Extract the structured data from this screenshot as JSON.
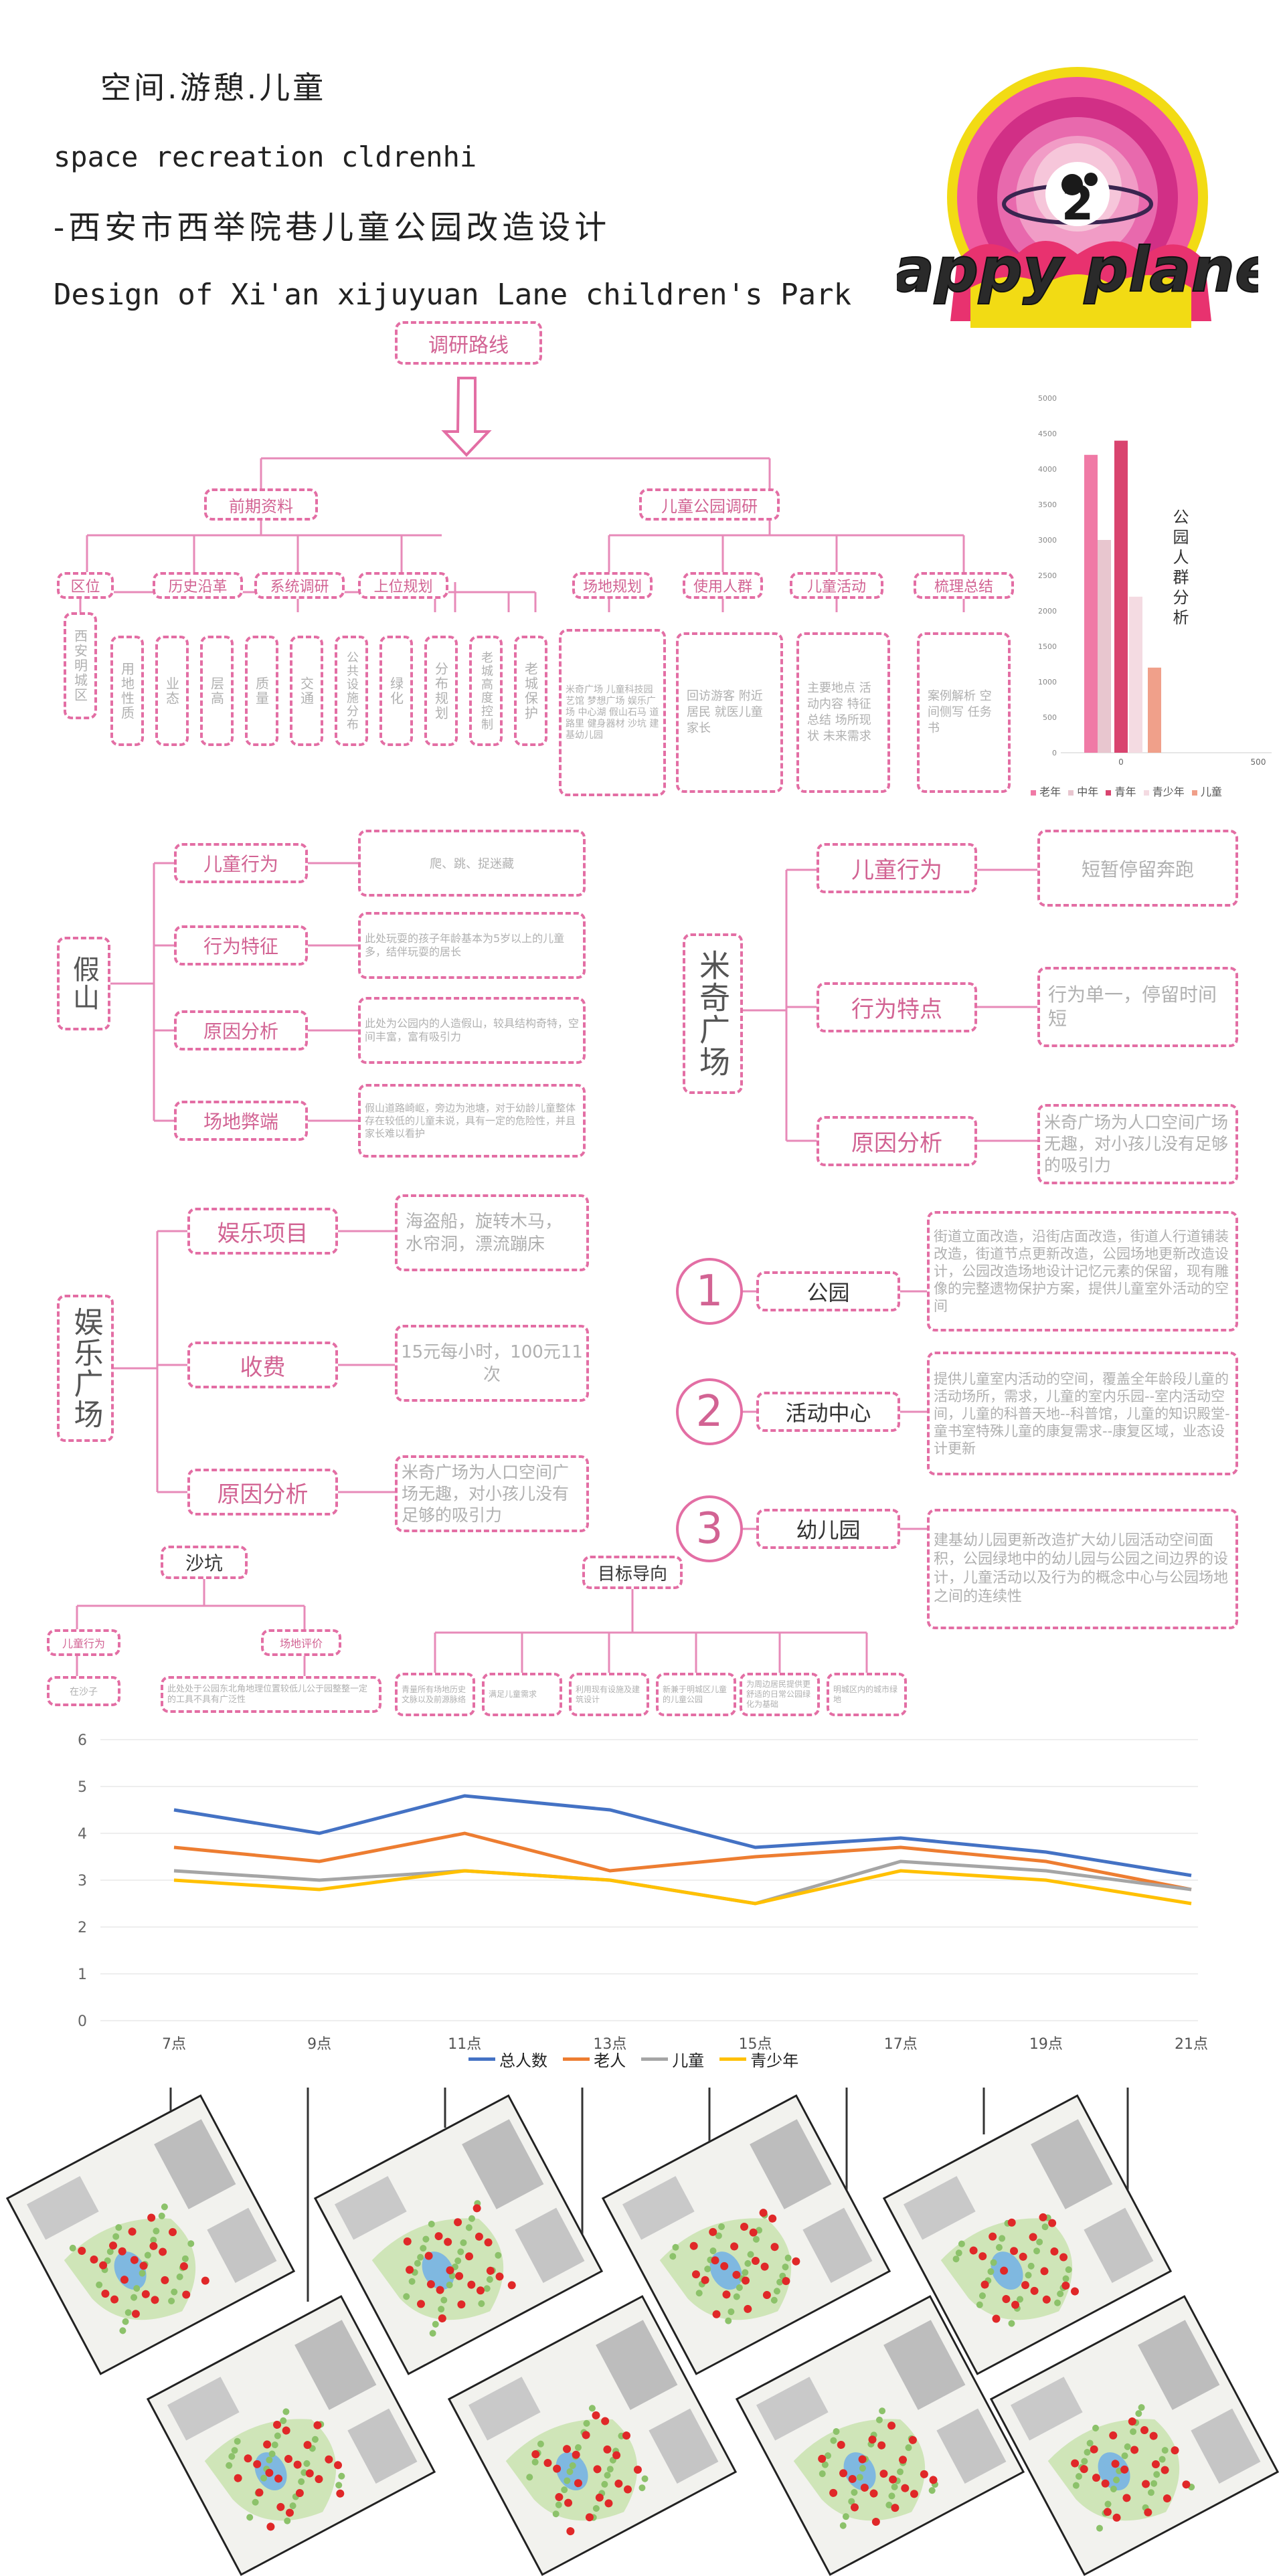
{
  "header": {
    "title_cn": "空间.游憩.儿童",
    "title_en": "space recreation cldrenhi",
    "subtitle_cn": "-西安市西举院巷儿童公园改造设计",
    "subtitle_en": "Design of Xi'an xijuyuan Lane children's Park",
    "logo_text": "happy planet",
    "logo_number": "2"
  },
  "research": {
    "root": "调研路线",
    "branch_left": "前期资料",
    "branch_right": "儿童公园调研",
    "left_items": [
      "区位",
      "历史沿革",
      "系统调研",
      "上位规划"
    ],
    "left_sub_location": "西安明城区",
    "left_sub_system": [
      "用地性质",
      "业态",
      "层高",
      "质量",
      "交通",
      "公共设施分布",
      "绿化"
    ],
    "left_sub_plan": [
      "分布规划",
      "老城高度控制",
      "老城保护"
    ],
    "right_items": [
      "场地规划",
      "使用人群",
      "儿童活动",
      "梳理总结"
    ],
    "right_sub": [
      "米奇广场 儿童科技园艺馆 梦想广场 娱乐广场 中心湖 假山石马 道路里 健身器材 沙坑 建基幼儿园",
      "回访游客 附近居民 就医儿童家长",
      "主要地点 活动内容 特征总结 场所现状 未来需求",
      "案例解析 空间侧写 任务书"
    ]
  },
  "bar_chart": {
    "vertical_label": "公园人群分析",
    "legend": [
      "老年",
      "中年",
      "青年",
      "青少年",
      "儿童"
    ]
  },
  "chart_data": [
    {
      "type": "bar",
      "categories": [
        "老年",
        "中年",
        "青年",
        "青少年",
        "儿童"
      ],
      "values": [
        4200,
        3000,
        4400,
        2200,
        1200
      ],
      "ylim": [
        0,
        5000
      ],
      "yticks": [
        "0",
        "500",
        "1000",
        "1500",
        "2000",
        "2500",
        "3000",
        "3500",
        "4000",
        "4500",
        "5000"
      ],
      "xticks": [
        "0",
        "500"
      ],
      "colors": [
        "#f07aa6",
        "#e8c6cf",
        "#d9446f",
        "#f4dbe2",
        "#f0a08a"
      ]
    },
    {
      "type": "line",
      "x": [
        "7点",
        "9点",
        "11点",
        "13点",
        "15点",
        "17点",
        "19点",
        "21点"
      ],
      "ylim": [
        0,
        6
      ],
      "yticks": [
        "0",
        "1",
        "2",
        "3",
        "4",
        "5",
        "6"
      ],
      "series": [
        {
          "name": "总人数",
          "color": "#4472c4",
          "values": [
            4.5,
            4.0,
            4.8,
            4.5,
            3.7,
            3.9,
            3.6,
            3.1
          ]
        },
        {
          "name": "老人",
          "color": "#ed7d31",
          "values": [
            3.7,
            3.4,
            4.0,
            3.2,
            3.5,
            3.7,
            3.4,
            2.8
          ]
        },
        {
          "name": "儿童",
          "color": "#a5a5a5",
          "values": [
            3.2,
            3.0,
            3.2,
            3.0,
            2.5,
            3.4,
            3.2,
            2.8
          ]
        },
        {
          "name": "青少年",
          "color": "#ffc000",
          "values": [
            3.0,
            2.8,
            3.2,
            3.0,
            2.5,
            3.2,
            3.0,
            2.5
          ]
        }
      ]
    }
  ],
  "jiashan": {
    "title": "假山",
    "rows": [
      {
        "label": "儿童行为",
        "desc": "爬、跳、捉迷藏"
      },
      {
        "label": "行为特征",
        "desc": "此处玩耍的孩子年龄基本为5岁以上的儿童多，结伴玩耍的居长"
      },
      {
        "label": "原因分析",
        "desc": "此处为公园内的人造假山，较具结构奇特，空间丰富，富有吸引力"
      },
      {
        "label": "场地弊端",
        "desc": "假山道路崎岖，旁边为池塘，对于幼龄儿童整体存在较低的儿童未说，具有一定的危险性，并且家长难以看护"
      }
    ]
  },
  "miqi": {
    "title": "米奇广场",
    "rows": [
      {
        "label": "儿童行为",
        "desc": "短暂停留奔跑"
      },
      {
        "label": "行为特点",
        "desc": "行为单一，停留时间短"
      },
      {
        "label": "原因分析",
        "desc": "米奇广场为人口空间广场无趣，对小孩儿没有足够的吸引力"
      }
    ]
  },
  "yule": {
    "title": "娱乐广场",
    "rows": [
      {
        "label": "娱乐项目",
        "desc": "海盗船，旋转木马，水帘洞，漂流蹦床"
      },
      {
        "label": "收费",
        "desc": "15元每小时，100元11次"
      },
      {
        "label": "原因分析",
        "desc": "米奇广场为人口空间广场无趣，对小孩儿没有足够的吸引力"
      }
    ]
  },
  "targets": [
    {
      "num": "1",
      "label": "公园",
      "desc": "街道立面改造，沿街店面改造，街道人行道铺装改造，街道节点更新改造，公园场地更新改造设计，公园改造场地设计记忆元素的保留，现有雕像的完整遗物保护方案，提供儿童室外活动的空间"
    },
    {
      "num": "2",
      "label": "活动中心",
      "desc": "提供儿童室内活动的空间，覆盖全年龄段儿童的活动场所，需求，儿童的室内乐园--室内活动空间，儿童的科普天地--科普馆，儿童的知识殿堂-童书室特殊儿童的康复需求--康复区域，业态设计更新"
    },
    {
      "num": "3",
      "label": "幼儿园",
      "desc": "建基幼儿园更新改造扩大幼儿园活动空间面积，公园绿地中的幼儿园与公园之间边界的设计，儿童活动以及行为的概念中心与公园场地之间的连续性"
    }
  ],
  "shakeng": {
    "title": "沙坑",
    "sub": [
      "儿童行为",
      "场地评价"
    ],
    "sub_desc": [
      "在沙子",
      "此处处于公园东北角地理位置较低儿公于园整整一定的工具不具有广泛性"
    ]
  },
  "goal": {
    "title": "目标导向",
    "items": [
      "青量所有场地历史文脉以及前源脉络",
      "满足儿童需求",
      "利用现有设施及建筑设计",
      "新兼于明城区儿童的儿童公园",
      "为周边居民提供更舒适的日常公园绿化为基础",
      "明城区内的城市绿地"
    ]
  },
  "line_chart": {
    "legend": [
      "总人数",
      "老人",
      "儿童",
      "青少年"
    ]
  },
  "colors": {
    "accent": "#e36ea4",
    "line_pink": "#e78ab8"
  }
}
